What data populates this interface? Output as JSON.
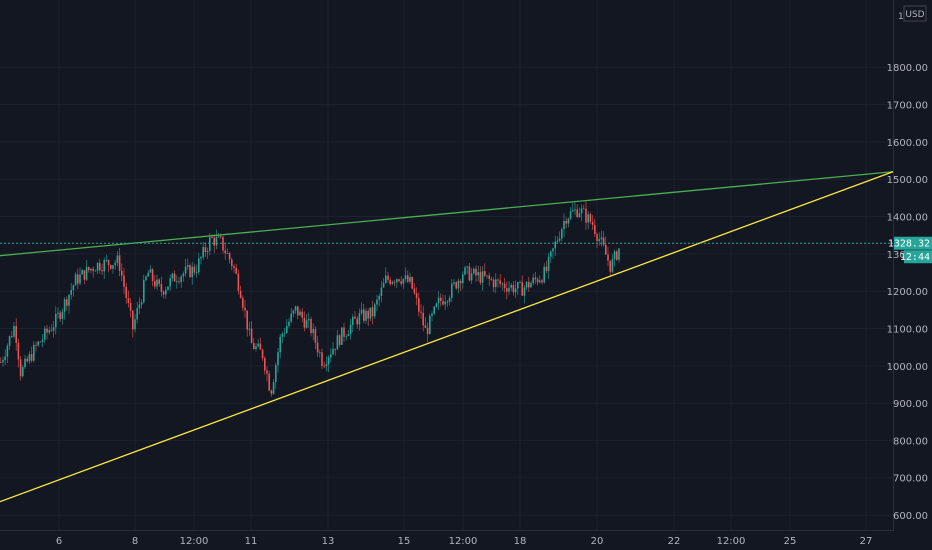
{
  "chart_data": {
    "type": "candlestick",
    "title": "",
    "currency": "USD",
    "top_left_glyph": "1",
    "price_axis": {
      "range": [
        560,
        1980
      ],
      "ticks": [
        600,
        700,
        800,
        900,
        1000,
        1100,
        1200,
        1300,
        1400,
        1500,
        1600,
        1700,
        1800
      ],
      "tick_labels": [
        "600.00",
        "700.00",
        "800.00",
        "900.00",
        "1000.00",
        "1100.00",
        "1200.00",
        "1300.00",
        "1400.00",
        "1500.00",
        "1600.00",
        "1700.00",
        "1800.00"
      ]
    },
    "time_axis": {
      "tick_labels": [
        "6",
        "8",
        "12:00",
        "11",
        "13",
        "15",
        "12:00",
        "18",
        "20",
        "22",
        "12:00",
        "25",
        "27"
      ]
    },
    "last_price": {
      "value": 1328.32,
      "label": "1328.32",
      "countdown": "12:44",
      "line_color": "#26a69a"
    },
    "trendlines": [
      {
        "name": "resistance",
        "color": "#4caf50",
        "from": [
          0,
          1295
        ],
        "to": [
          893,
          1520
        ]
      },
      {
        "name": "support",
        "color": "#ffeb3b",
        "from": [
          0,
          636
        ],
        "to": [
          893,
          1520
        ]
      }
    ],
    "price_path": [
      [
        0,
        1010
      ],
      [
        14,
        1110
      ],
      [
        20,
        980
      ],
      [
        35,
        1050
      ],
      [
        55,
        1120
      ],
      [
        75,
        1230
      ],
      [
        95,
        1270
      ],
      [
        118,
        1280
      ],
      [
        132,
        1100
      ],
      [
        147,
        1250
      ],
      [
        160,
        1200
      ],
      [
        175,
        1240
      ],
      [
        195,
        1260
      ],
      [
        210,
        1340
      ],
      [
        220,
        1330
      ],
      [
        232,
        1270
      ],
      [
        240,
        1200
      ],
      [
        250,
        1060
      ],
      [
        262,
        1030
      ],
      [
        270,
        930
      ],
      [
        280,
        1080
      ],
      [
        295,
        1150
      ],
      [
        310,
        1100
      ],
      [
        322,
        1010
      ],
      [
        340,
        1080
      ],
      [
        358,
        1130
      ],
      [
        372,
        1140
      ],
      [
        385,
        1230
      ],
      [
        398,
        1240
      ],
      [
        410,
        1220
      ],
      [
        425,
        1090
      ],
      [
        438,
        1170
      ],
      [
        450,
        1200
      ],
      [
        462,
        1250
      ],
      [
        478,
        1240
      ],
      [
        498,
        1220
      ],
      [
        520,
        1205
      ],
      [
        532,
        1225
      ],
      [
        545,
        1250
      ],
      [
        555,
        1330
      ],
      [
        565,
        1400
      ],
      [
        578,
        1420
      ],
      [
        592,
        1380
      ],
      [
        600,
        1330
      ],
      [
        610,
        1265
      ],
      [
        620,
        1325
      ]
    ],
    "colors": {
      "up": "#26a69a",
      "down": "#ef5350",
      "background": "#131722",
      "grid": "#1e2230"
    }
  }
}
